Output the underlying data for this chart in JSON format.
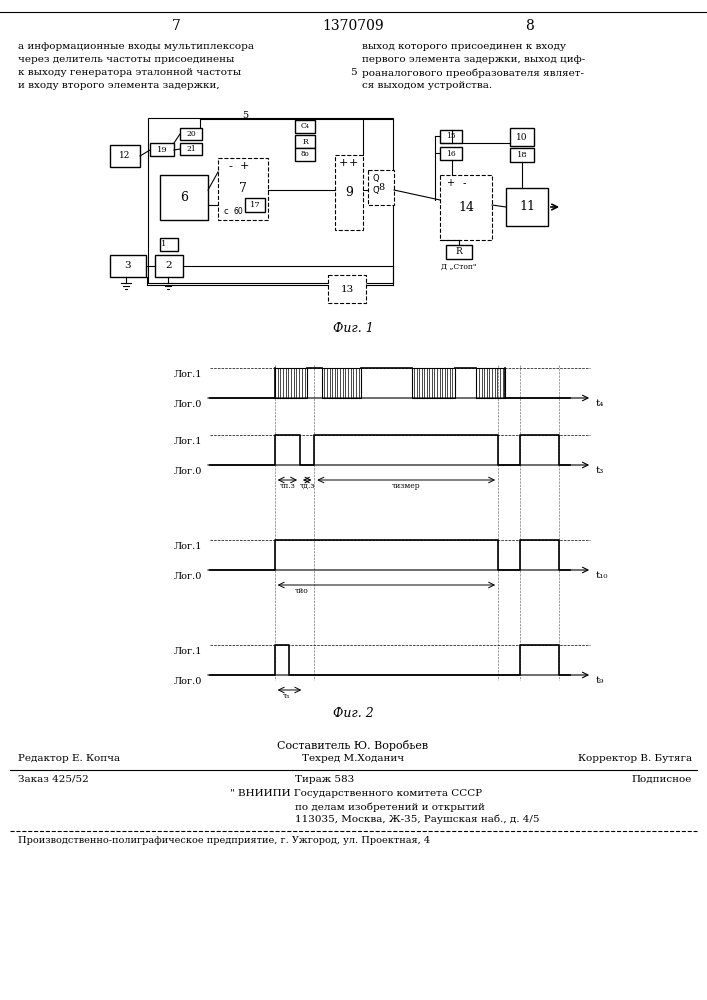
{
  "left_text_lines": [
    "а информационные входы мультиплексора",
    "через делитель частоты присоединены",
    "к выходу генератора эталонной частоты",
    "и входу второго элемента задержки,"
  ],
  "right_text_lines": [
    "выход которого присоединен к входу",
    "первого элемента задержки, выход циф-",
    "роаналогового преобразователя являет-",
    "ся выходом устройства."
  ],
  "center_number": "5",
  "fig1_label": "Фиг. 1",
  "fig2_label": "Фиг. 2",
  "s1_l1": "Лог.1",
  "s1_l0": "Лог.0",
  "s1_t": "t₄",
  "s2_l1": "Лог.1",
  "s2_l0": "Лог.0",
  "s2_t": "t₃",
  "s2_tau1": "τп.з",
  "s2_tau2": "τд.з",
  "s2_tau3": "τизмер",
  "s3_l1": "Лог.1",
  "s3_l0": "Лог.0",
  "s3_t": "t₁₀",
  "s3_tau": "τйо",
  "s4_l1": "Лог.1",
  "s4_l0": "Лог.0",
  "s4_t": "t₉",
  "s4_tau": "τₙ",
  "footer_composer": "Составитель Ю. Воробьев",
  "footer_editor": "Редактор Е. Копча",
  "footer_techred": "Техред М.Ходанич",
  "footer_corrector": "Корректор В. Бутяга",
  "footer_order": "Заказ 425/52",
  "footer_tirage": "Тираж 583",
  "footer_podpisnoe": "Подписное",
  "footer_vnipi1": "\" ВНИИПИ Государственного комитета СССР",
  "footer_vnipi2": "по делам изобретений и открытий",
  "footer_addr": "113035, Москва, Ж-35, Раушская наб., д. 4/5",
  "footer_factory": "Производственно-полиграфическое предприятие, г. Ужгород, ул. Проектная, 4"
}
